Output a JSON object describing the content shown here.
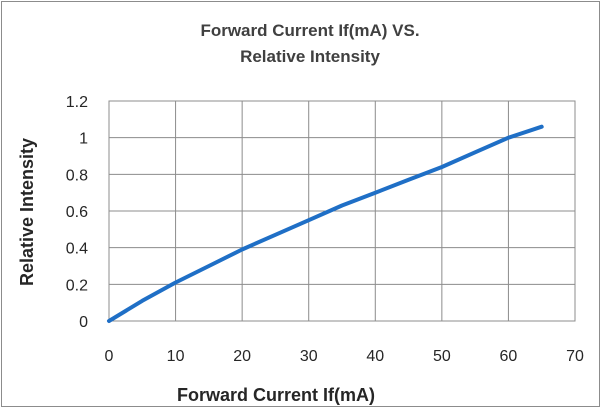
{
  "chart_data": {
    "type": "line",
    "title_lines": [
      "Forward Current If(mA) VS.",
      "Relative Intensity"
    ],
    "xlabel": "Forward Current If(mA)",
    "ylabel": "Relative  Intensity",
    "xlim": [
      0,
      70
    ],
    "ylim": [
      0,
      1.2
    ],
    "x_ticks": [
      0,
      10,
      20,
      30,
      40,
      50,
      60,
      70
    ],
    "y_ticks": [
      0,
      0.2,
      0.4,
      0.6,
      0.8,
      1,
      1.2
    ],
    "x_tick_labels": [
      "0",
      "10",
      "20",
      "30",
      "40",
      "50",
      "60",
      "70"
    ],
    "y_tick_labels": [
      "0",
      "0.2",
      "0.4",
      "0.6",
      "0.8",
      "1",
      "1.2"
    ],
    "grid": true,
    "legend": "none",
    "series": [
      {
        "color": "#1f6fc6",
        "x": [
          0,
          5,
          10,
          15,
          20,
          25,
          30,
          35,
          40,
          45,
          50,
          55,
          60,
          65
        ],
        "y": [
          0,
          0.11,
          0.21,
          0.3,
          0.39,
          0.47,
          0.55,
          0.63,
          0.7,
          0.77,
          0.84,
          0.92,
          1.0,
          1.06
        ]
      }
    ]
  }
}
